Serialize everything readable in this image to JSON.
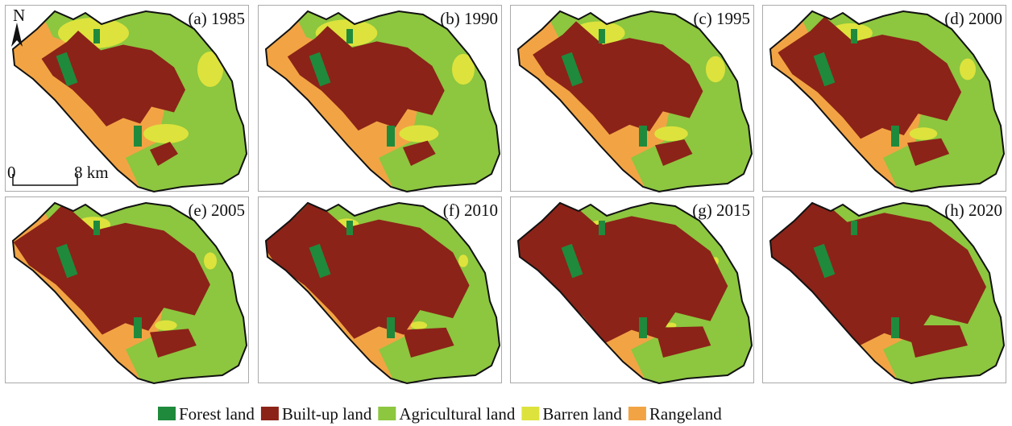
{
  "panels": [
    {
      "label": "(a) 1985"
    },
    {
      "label": "(b) 1990"
    },
    {
      "label": "(c) 1995"
    },
    {
      "label": "(d) 2000"
    },
    {
      "label": "(e) 2005"
    },
    {
      "label": "(f) 2010"
    },
    {
      "label": "(g) 2015"
    },
    {
      "label": "(h) 2020"
    }
  ],
  "north_arrow": "N",
  "scale_bar": {
    "start": "0",
    "end": "8 km"
  },
  "legend": {
    "items": [
      {
        "name": "Forest land",
        "color": "#1f8a3c"
      },
      {
        "name": "Built-up land",
        "color": "#8b2318"
      },
      {
        "name": "Agricultural land",
        "color": "#8dc63f"
      },
      {
        "name": "Barren land",
        "color": "#dde33c"
      },
      {
        "name": "Rangeland",
        "color": "#f2a444"
      }
    ]
  }
}
